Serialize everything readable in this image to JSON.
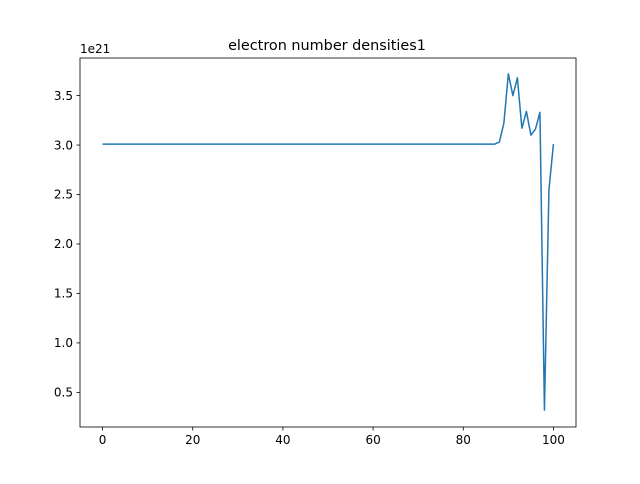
{
  "chart_data": {
    "type": "line",
    "title": "electron number densities1",
    "xlabel": "",
    "ylabel": "",
    "y_offset_label": "1e21",
    "y_scale_factor": 1e+21,
    "xlim": [
      -5,
      105
    ],
    "ylim": [
      0.15,
      3.88
    ],
    "x_ticks": [
      0,
      20,
      40,
      60,
      80,
      100
    ],
    "x_tick_labels": [
      "0",
      "20",
      "40",
      "60",
      "80",
      "100"
    ],
    "y_ticks": [
      0.5,
      1.0,
      1.5,
      2.0,
      2.5,
      3.0,
      3.5
    ],
    "y_tick_labels": [
      "0.5",
      "1.0",
      "1.5",
      "2.0",
      "2.5",
      "3.0",
      "3.5"
    ],
    "grid": false,
    "legend": false,
    "series_color": "#1f77b4",
    "series": [
      {
        "x": [
          0,
          10,
          20,
          30,
          40,
          50,
          60,
          70,
          80,
          86,
          87,
          88,
          89,
          90,
          91,
          92,
          93,
          94,
          95,
          96,
          97,
          98,
          99,
          100
        ],
        "y": [
          3.01,
          3.01,
          3.01,
          3.01,
          3.01,
          3.01,
          3.01,
          3.01,
          3.01,
          3.01,
          3.01,
          3.03,
          3.22,
          3.72,
          3.5,
          3.68,
          3.17,
          3.34,
          3.1,
          3.16,
          3.33,
          0.32,
          2.55,
          3.01
        ]
      }
    ]
  }
}
